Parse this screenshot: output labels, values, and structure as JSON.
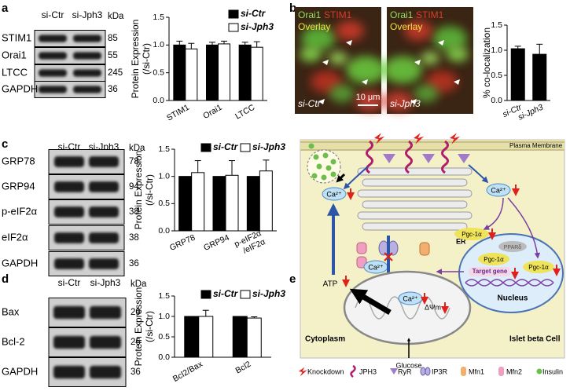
{
  "panels": [
    "a",
    "b",
    "c",
    "d",
    "e"
  ],
  "blots": [
    {
      "lanes": [
        "si-Ctr",
        "si-Jph3"
      ],
      "unit": "kDa",
      "rows": [
        {
          "label": "STIM1",
          "kda": 85
        },
        {
          "label": "Orai1",
          "kda": 55
        },
        {
          "label": "LTCC",
          "kda": 245
        },
        {
          "label": "GAPDH",
          "kda": 36
        }
      ]
    },
    {
      "lanes": [
        "si-Ctr",
        "si-Jph3"
      ],
      "unit": "kDa",
      "rows": [
        {
          "label": "GRP78",
          "kda": 78
        },
        {
          "label": "GRP94",
          "kda": 94
        },
        {
          "label": "p-eIF2α",
          "kda": 38
        },
        {
          "label": "eIF2α",
          "kda": 38
        },
        {
          "label": "GAPDH",
          "kda": 36
        }
      ]
    },
    {
      "lanes": [
        "si-Ctr",
        "si-Jph3"
      ],
      "unit": "kDa",
      "rows": [
        {
          "label": "Bax",
          "kda": 20
        },
        {
          "label": "Bcl-2",
          "kda": 26
        },
        {
          "label": "GAPDH",
          "kda": 36
        }
      ]
    }
  ],
  "micrographs": {
    "stains": [
      "Orai1",
      "STIM1"
    ],
    "overlay": "Overlay",
    "conditions": [
      "si-Ctr",
      "si-Jph3"
    ],
    "scale_bar": "10 μm"
  },
  "chart_data": [
    {
      "type": "bar",
      "ylabel": "Protein Expression\n(/si-Ctr)",
      "categories": [
        "STIM1",
        "Orai1",
        "LTCC"
      ],
      "series": [
        {
          "name": "si-Ctr",
          "color": "#000000",
          "values": [
            1.0,
            1.0,
            1.0
          ],
          "errors": [
            0.07,
            0.05,
            0.05
          ]
        },
        {
          "name": "si-Jph3",
          "color": "#ffffff",
          "values": [
            0.93,
            1.02,
            0.96
          ],
          "errors": [
            0.1,
            0.05,
            0.1
          ]
        }
      ],
      "ylim": [
        0,
        1.5
      ],
      "yticks": [
        {
          "value": 0,
          "label": "0.0"
        },
        0.5,
        {
          "value": 1,
          "label": "1.0"
        },
        1.5
      ],
      "legend": "top-right"
    },
    {
      "type": "bar",
      "ylabel": "% co-localization",
      "categories": [
        "si-Ctr",
        "si-Jph3"
      ],
      "values": [
        1.03,
        0.92
      ],
      "errors": [
        0.05,
        0.2
      ],
      "color": "#000000",
      "ylim": [
        0,
        1.5
      ],
      "yticks": [
        {
          "value": 0,
          "label": "0.0"
        },
        0.5,
        {
          "value": 1,
          "label": "1.0"
        },
        1.5
      ]
    },
    {
      "type": "bar",
      "ylabel": "Protein Expression\n(/si-Ctr)",
      "categories": [
        "GRP78",
        "GRP94",
        "p-eIF2α\n/eIF2α"
      ],
      "series": [
        {
          "name": "si-Ctr",
          "color": "#000000",
          "values": [
            1.0,
            1.0,
            1.0
          ]
        },
        {
          "name": "si-Jph3",
          "color": "#ffffff",
          "values": [
            1.07,
            1.02,
            1.1
          ],
          "errors": [
            0.22,
            0.27,
            0.2
          ]
        }
      ],
      "ylim": [
        0,
        1.5
      ],
      "yticks": [
        {
          "value": 0,
          "label": "0.0"
        },
        0.5,
        {
          "value": 1,
          "label": "1.0"
        },
        1.5
      ],
      "legend": "top"
    },
    {
      "type": "bar",
      "ylabel": "Protein Expression\n(/si-Ctr)",
      "categories": [
        "Bcl2/Bax",
        "Bcl2"
      ],
      "series": [
        {
          "name": "si-Ctr",
          "color": "#000000",
          "values": [
            1.0,
            1.0
          ]
        },
        {
          "name": "si-Jph3",
          "color": "#ffffff",
          "values": [
            1.0,
            0.96
          ],
          "errors": [
            0.15,
            0.03
          ]
        }
      ],
      "ylim": [
        0,
        1.5
      ],
      "yticks": [
        {
          "value": 0,
          "label": "0.0"
        },
        0.5,
        {
          "value": 1,
          "label": "1.0"
        },
        1.5
      ],
      "legend": "top"
    }
  ],
  "diagram": {
    "membrane": "Plasma Membrane",
    "ion": "Ca²⁺",
    "organelle": "ER",
    "factor": "Pgc-1α",
    "partner": "PPARδ",
    "gene": "Target gene",
    "nucleus": "Nucleus",
    "energy": "ATP",
    "potential": "ΔΨm",
    "cytoplasm": "Cytoplasm",
    "cell": "Islet beta Cell",
    "substrate": "Glucose",
    "legend": [
      "Knockdown",
      "JPH3",
      "RyR",
      "IP3R",
      "Mfn1",
      "Mfn2",
      "Insulin"
    ]
  }
}
